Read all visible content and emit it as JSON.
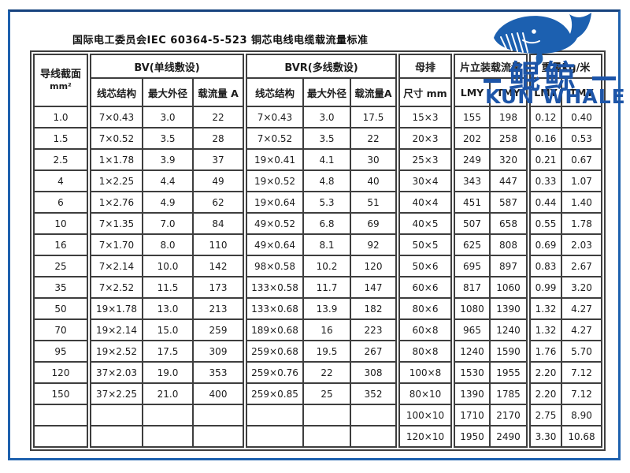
{
  "title": "国际电工委员会IEC 60364-5-523 铜芯电线电缆载流量标准",
  "logo": {
    "brand_cn": "鲲鲸",
    "brand_en": "KUN WHALE",
    "whale_color": "#1c60b0",
    "text_color": "#1d55a8",
    "frame_color": "#1e61ae"
  },
  "table": {
    "groups": [
      {
        "id": "conductor-size",
        "field": "size",
        "title_lines": [
          "导线截面",
          "mm²"
        ]
      },
      {
        "id": "bv-single-wire",
        "field": "bv",
        "title": "BV(单线敷设)",
        "subheaders": [
          "线芯结构",
          "最大外径",
          "载流量 A"
        ]
      },
      {
        "id": "bvr-multi-wire",
        "field": "bvr",
        "title": "BVR(多线敷设)",
        "subheaders": [
          "线芯结构",
          "最大外径",
          "载流量A"
        ]
      },
      {
        "id": "busbar",
        "field": "busbar",
        "title": "母排",
        "subheaders": [
          "尺寸 mm"
        ]
      },
      {
        "id": "flat-mount-capacity",
        "field": "flat",
        "title": "片立装载流量",
        "subheaders": [
          "LMY",
          "TMY"
        ]
      },
      {
        "id": "weight-kg-per-meter",
        "field": "weight",
        "title": "重量kg/米",
        "subheaders": [
          "LMY",
          "TMY"
        ]
      }
    ],
    "rows": [
      {
        "size": "1.0",
        "bv": [
          "7×0.43",
          "3.0",
          "22"
        ],
        "bvr": [
          "7×0.43",
          "3.0",
          "17.5"
        ],
        "busbar": "15×3",
        "flat": [
          "155",
          "198"
        ],
        "weight": [
          "0.12",
          "0.40"
        ]
      },
      {
        "size": "1.5",
        "bv": [
          "7×0.52",
          "3.5",
          "28"
        ],
        "bvr": [
          "7×0.52",
          "3.5",
          "22"
        ],
        "busbar": "20×3",
        "flat": [
          "202",
          "258"
        ],
        "weight": [
          "0.16",
          "0.53"
        ]
      },
      {
        "size": "2.5",
        "bv": [
          "1×1.78",
          "3.9",
          "37"
        ],
        "bvr": [
          "19×0.41",
          "4.1",
          "30"
        ],
        "busbar": "25×3",
        "flat": [
          "249",
          "320"
        ],
        "weight": [
          "0.21",
          "0.67"
        ]
      },
      {
        "size": "4",
        "bv": [
          "1×2.25",
          "4.4",
          "49"
        ],
        "bvr": [
          "19×0.52",
          "4.8",
          "40"
        ],
        "busbar": "30×4",
        "flat": [
          "343",
          "447"
        ],
        "weight": [
          "0.33",
          "1.07"
        ]
      },
      {
        "size": "6",
        "bv": [
          "1×2.76",
          "4.9",
          "62"
        ],
        "bvr": [
          "19×0.64",
          "5.3",
          "51"
        ],
        "busbar": "40×4",
        "flat": [
          "451",
          "587"
        ],
        "weight": [
          "0.44",
          "1.40"
        ]
      },
      {
        "size": "10",
        "bv": [
          "7×1.35",
          "7.0",
          "84"
        ],
        "bvr": [
          "49×0.52",
          "6.8",
          "69"
        ],
        "busbar": "40×5",
        "flat": [
          "507",
          "658"
        ],
        "weight": [
          "0.55",
          "1.78"
        ]
      },
      {
        "size": "16",
        "bv": [
          "7×1.70",
          "8.0",
          "110"
        ],
        "bvr": [
          "49×0.64",
          "8.1",
          "92"
        ],
        "busbar": "50×5",
        "flat": [
          "625",
          "808"
        ],
        "weight": [
          "0.69",
          "2.03"
        ]
      },
      {
        "size": "25",
        "bv": [
          "7×2.14",
          "10.0",
          "142"
        ],
        "bvr": [
          "98×0.58",
          "10.2",
          "120"
        ],
        "busbar": "50×6",
        "flat": [
          "695",
          "897"
        ],
        "weight": [
          "0.83",
          "2.67"
        ]
      },
      {
        "size": "35",
        "bv": [
          "7×2.52",
          "11.5",
          "173"
        ],
        "bvr": [
          "133×0.58",
          "11.7",
          "147"
        ],
        "busbar": "60×6",
        "flat": [
          "817",
          "1060"
        ],
        "weight": [
          "0.99",
          "3.20"
        ]
      },
      {
        "size": "50",
        "bv": [
          "19×1.78",
          "13.0",
          "213"
        ],
        "bvr": [
          "133×0.68",
          "13.9",
          "182"
        ],
        "busbar": "80×6",
        "flat": [
          "1080",
          "1390"
        ],
        "weight": [
          "1.32",
          "4.27"
        ]
      },
      {
        "size": "70",
        "bv": [
          "19×2.14",
          "15.0",
          "259"
        ],
        "bvr": [
          "189×0.68",
          "16",
          "223"
        ],
        "busbar": "60×8",
        "flat": [
          "965",
          "1240"
        ],
        "weight": [
          "1.32",
          "4.27"
        ]
      },
      {
        "size": "95",
        "bv": [
          "19×2.52",
          "17.5",
          "309"
        ],
        "bvr": [
          "259×0.68",
          "19.5",
          "267"
        ],
        "busbar": "80×8",
        "flat": [
          "1240",
          "1590"
        ],
        "weight": [
          "1.76",
          "5.70"
        ]
      },
      {
        "size": "120",
        "bv": [
          "37×2.03",
          "19.0",
          "353"
        ],
        "bvr": [
          "259×0.76",
          "22",
          "308"
        ],
        "busbar": "100×8",
        "flat": [
          "1530",
          "1955"
        ],
        "weight": [
          "2.20",
          "7.12"
        ]
      },
      {
        "size": "150",
        "bv": [
          "37×2.25",
          "21.0",
          "400"
        ],
        "bvr": [
          "259×0.85",
          "25",
          "352"
        ],
        "busbar": "80×10",
        "flat": [
          "1390",
          "1785"
        ],
        "weight": [
          "2.20",
          "7.12"
        ]
      },
      {
        "size": "",
        "bv": [
          "",
          "",
          ""
        ],
        "bvr": [
          "",
          "",
          ""
        ],
        "busbar": "100×10",
        "flat": [
          "1710",
          "2170"
        ],
        "weight": [
          "2.75",
          "8.90"
        ]
      },
      {
        "size": "",
        "bv": [
          "",
          "",
          ""
        ],
        "bvr": [
          "",
          "",
          ""
        ],
        "busbar": "120×10",
        "flat": [
          "1950",
          "2490"
        ],
        "weight": [
          "3.30",
          "10.68"
        ]
      }
    ]
  }
}
